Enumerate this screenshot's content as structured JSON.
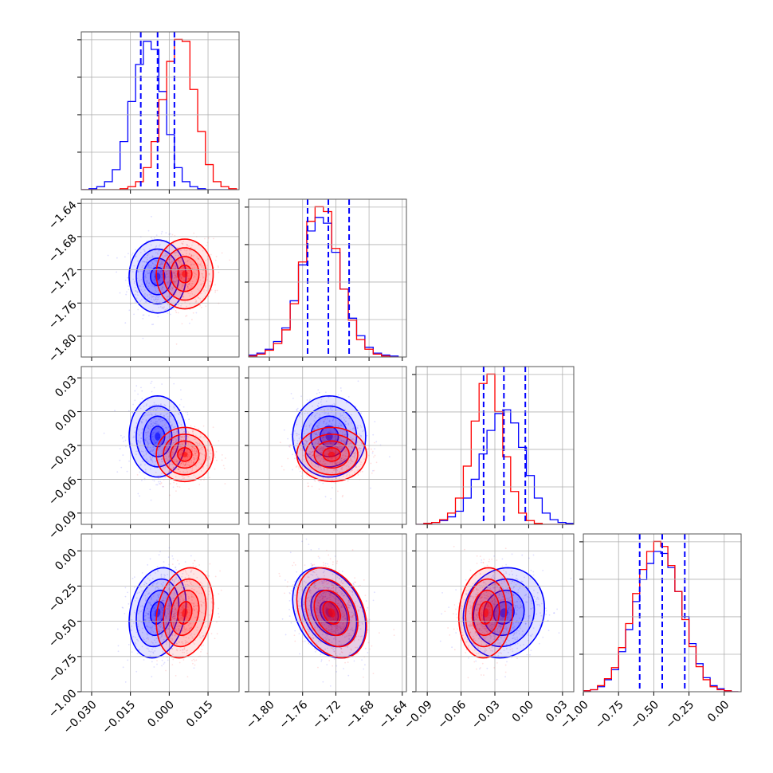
{
  "chart_data": {
    "type": "corner",
    "colors": {
      "blue": "#0000ff",
      "red": "#ff0000"
    },
    "grid": true,
    "params": [
      {
        "range": [
          -0.034,
          0.027
        ],
        "ticks": [
          -0.03,
          -0.015,
          0.0,
          0.015
        ],
        "tick_labels": [
          "−0.030",
          "−0.015",
          "0.000",
          "0.015"
        ]
      },
      {
        "range": [
          -1.825,
          -1.635
        ],
        "ticks": [
          -1.8,
          -1.76,
          -1.72,
          -1.68,
          -1.64
        ],
        "tick_labels": [
          "−1.80",
          "−1.76",
          "−1.72",
          "−1.68",
          "−1.64"
        ]
      },
      {
        "range": [
          -0.1,
          0.04
        ],
        "ticks": [
          -0.09,
          -0.06,
          -0.03,
          0.0,
          0.03
        ],
        "tick_labels": [
          "−0.09",
          "−0.06",
          "−0.03",
          "0.00",
          "0.03"
        ]
      },
      {
        "range": [
          -1.0,
          0.12
        ],
        "ticks": [
          -1.0,
          -0.75,
          -0.5,
          -0.25,
          0.0
        ],
        "tick_labels": [
          "−1.00",
          "−0.75",
          "−0.50",
          "−0.25",
          "0.00"
        ]
      }
    ],
    "series": [
      {
        "color": "blue",
        "centers": [
          -0.0045,
          -1.728,
          -0.022,
          -0.44
        ],
        "sigmas": [
          0.0055,
          0.022,
          0.018,
          0.16
        ],
        "correlations": {
          "0-1": 0.0,
          "0-2": 0.0,
          "0-3": 0.2,
          "1-2": 0.0,
          "1-3": -0.3,
          "2-3": 0.1
        }
      },
      {
        "color": "red",
        "centers": [
          0.006,
          -1.725,
          -0.038,
          -0.44
        ],
        "sigmas": [
          0.0055,
          0.021,
          0.012,
          0.16
        ],
        "correlations": {
          "0-1": 0.0,
          "0-2": 0.0,
          "0-3": 0.2,
          "1-2": 0.0,
          "1-3": -0.3,
          "2-3": 0.1
        }
      }
    ],
    "quantile_lines": [
      [
        -0.011,
        -0.0045,
        0.002
      ],
      [
        -1.754,
        -1.729,
        -1.704
      ],
      [
        -0.04,
        -0.022,
        -0.003
      ],
      [
        -0.6,
        -0.44,
        -0.28
      ]
    ],
    "histograms": {
      "0": {
        "edges": [
          -0.034,
          -0.031,
          -0.028,
          -0.025,
          -0.022,
          -0.019,
          -0.016,
          -0.013,
          -0.01,
          -0.007,
          -0.004,
          -0.001,
          0.002,
          0.005,
          0.008,
          0.011,
          0.014,
          0.017,
          0.02,
          0.023,
          0.026
        ],
        "blue": [
          0,
          1,
          3,
          8,
          20,
          48,
          88,
          125,
          148,
          140,
          98,
          55,
          22,
          8,
          3,
          1,
          0,
          0,
          0,
          0
        ],
        "red": [
          0,
          0,
          0,
          0,
          0,
          1,
          3,
          8,
          22,
          48,
          90,
          128,
          150,
          148,
          100,
          58,
          25,
          8,
          3,
          1
        ]
      },
      "1": {
        "edges": [
          -1.825,
          -1.815,
          -1.805,
          -1.795,
          -1.785,
          -1.775,
          -1.765,
          -1.755,
          -1.745,
          -1.735,
          -1.725,
          -1.715,
          -1.705,
          -1.695,
          -1.685,
          -1.675,
          -1.665,
          -1.655,
          -1.645
        ],
        "blue": [
          2,
          4,
          8,
          16,
          30,
          58,
          95,
          130,
          144,
          138,
          108,
          70,
          40,
          22,
          10,
          4,
          2,
          1
        ],
        "red": [
          1,
          3,
          7,
          14,
          28,
          55,
          98,
          140,
          155,
          150,
          112,
          70,
          38,
          18,
          8,
          3,
          1,
          0
        ]
      },
      "2": {
        "edges": [
          -0.1,
          -0.093,
          -0.086,
          -0.079,
          -0.072,
          -0.065,
          -0.058,
          -0.051,
          -0.044,
          -0.037,
          -0.03,
          -0.023,
          -0.016,
          -0.009,
          -0.002,
          0.005,
          0.012,
          0.019,
          0.026,
          0.033,
          0.04
        ],
        "blue": [
          0,
          1,
          2,
          4,
          8,
          14,
          28,
          48,
          75,
          100,
          118,
          122,
          108,
          82,
          52,
          28,
          12,
          5,
          2,
          1
        ],
        "red": [
          0,
          1,
          2,
          5,
          12,
          28,
          62,
          110,
          150,
          160,
          120,
          72,
          35,
          12,
          4,
          1,
          0,
          0,
          0,
          0
        ]
      },
      "3": {
        "edges": [
          -1.0,
          -0.95,
          -0.9,
          -0.85,
          -0.8,
          -0.75,
          -0.7,
          -0.65,
          -0.6,
          -0.55,
          -0.5,
          -0.45,
          -0.4,
          -0.35,
          -0.3,
          -0.25,
          -0.2,
          -0.15,
          -0.1,
          -0.05,
          0.0,
          0.05,
          0.1
        ],
        "blue": [
          1,
          2,
          5,
          12,
          22,
          40,
          62,
          90,
          112,
          128,
          140,
          138,
          124,
          100,
          75,
          48,
          28,
          14,
          6,
          3,
          1,
          0
        ],
        "red": [
          1,
          2,
          6,
          13,
          24,
          44,
          68,
          98,
          122,
          140,
          150,
          145,
          126,
          100,
          72,
          45,
          25,
          12,
          5,
          2,
          1,
          0
        ]
      }
    }
  }
}
